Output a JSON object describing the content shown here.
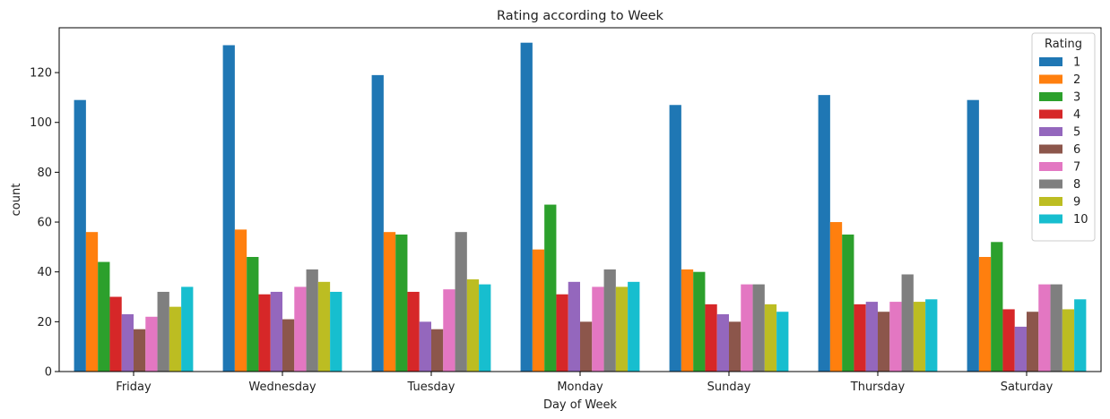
{
  "chart_data": {
    "type": "bar",
    "title": "Rating according to Week",
    "xlabel": "Day of Week",
    "ylabel": "count",
    "ylim": [
      0,
      138
    ],
    "yticks": [
      0,
      20,
      40,
      60,
      80,
      100,
      120
    ],
    "grid": false,
    "legend": {
      "title": "Rating",
      "placement": "top-right"
    },
    "categories": [
      "Friday",
      "Wednesday",
      "Tuesday",
      "Monday",
      "Sunday",
      "Thursday",
      "Saturday"
    ],
    "series": [
      {
        "name": "1",
        "color": "#1f77b4",
        "values": [
          109,
          131,
          119,
          132,
          107,
          111,
          109
        ]
      },
      {
        "name": "2",
        "color": "#ff7f0e",
        "values": [
          56,
          57,
          56,
          49,
          41,
          60,
          46
        ]
      },
      {
        "name": "3",
        "color": "#2ca02c",
        "values": [
          44,
          46,
          55,
          67,
          40,
          55,
          52
        ]
      },
      {
        "name": "4",
        "color": "#d62728",
        "values": [
          30,
          31,
          32,
          31,
          27,
          27,
          25
        ]
      },
      {
        "name": "5",
        "color": "#9467bd",
        "values": [
          23,
          32,
          20,
          36,
          23,
          28,
          18
        ]
      },
      {
        "name": "6",
        "color": "#8c564b",
        "values": [
          17,
          21,
          17,
          20,
          20,
          24,
          24
        ]
      },
      {
        "name": "7",
        "color": "#e377c2",
        "values": [
          22,
          34,
          33,
          34,
          35,
          28,
          35
        ]
      },
      {
        "name": "8",
        "color": "#7f7f7f",
        "values": [
          32,
          41,
          56,
          41,
          35,
          39,
          35
        ]
      },
      {
        "name": "9",
        "color": "#bcbd22",
        "values": [
          26,
          36,
          37,
          34,
          27,
          28,
          25
        ]
      },
      {
        "name": "10",
        "color": "#17becf",
        "values": [
          34,
          32,
          35,
          36,
          24,
          29,
          29
        ]
      }
    ]
  }
}
